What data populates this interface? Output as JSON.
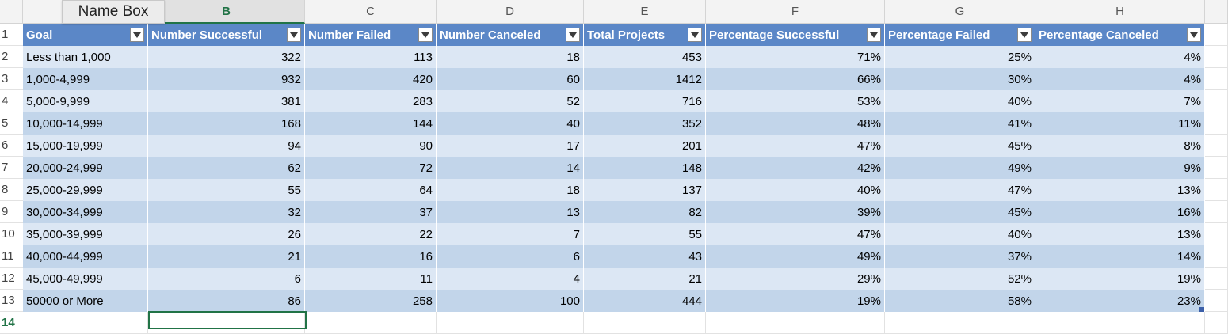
{
  "name_box": {
    "label": "Name Box"
  },
  "columns": [
    "B",
    "C",
    "D",
    "E",
    "F",
    "G",
    "H"
  ],
  "selected_column": "B",
  "rows": [
    "1",
    "2",
    "3",
    "4",
    "5",
    "6",
    "7",
    "8",
    "9",
    "10",
    "11",
    "12",
    "13",
    "14"
  ],
  "selected_row": "14",
  "table": {
    "headers": [
      "Goal",
      "Number Successful",
      "Number Failed",
      "Number Canceled",
      "Total Projects",
      "Percentage Successful",
      "Percentage Failed",
      "Percentage Canceled"
    ],
    "data": [
      [
        "Less than 1,000",
        "322",
        "113",
        "18",
        "453",
        "71%",
        "25%",
        "4%"
      ],
      [
        "1,000-4,999",
        "932",
        "420",
        "60",
        "1412",
        "66%",
        "30%",
        "4%"
      ],
      [
        "5,000-9,999",
        "381",
        "283",
        "52",
        "716",
        "53%",
        "40%",
        "7%"
      ],
      [
        "10,000-14,999",
        "168",
        "144",
        "40",
        "352",
        "48%",
        "41%",
        "11%"
      ],
      [
        "15,000-19,999",
        "94",
        "90",
        "17",
        "201",
        "47%",
        "45%",
        "8%"
      ],
      [
        "20,000-24,999",
        "62",
        "72",
        "14",
        "148",
        "42%",
        "49%",
        "9%"
      ],
      [
        "25,000-29,999",
        "55",
        "64",
        "18",
        "137",
        "40%",
        "47%",
        "13%"
      ],
      [
        "30,000-34,999",
        "32",
        "37",
        "13",
        "82",
        "39%",
        "45%",
        "16%"
      ],
      [
        "35,000-39,999",
        "26",
        "22",
        "7",
        "55",
        "47%",
        "40%",
        "13%"
      ],
      [
        "40,000-44,999",
        "21",
        "16",
        "6",
        "43",
        "49%",
        "37%",
        "14%"
      ],
      [
        "45,000-49,999",
        "6",
        "11",
        "4",
        "21",
        "29%",
        "52%",
        "19%"
      ],
      [
        "50000 or More",
        "86",
        "258",
        "100",
        "444",
        "19%",
        "58%",
        "23%"
      ]
    ]
  },
  "colors": {
    "header": "#5b87c7",
    "band_dark": "#c2d5ea",
    "band_light": "#dce7f4",
    "selection": "#217346"
  }
}
